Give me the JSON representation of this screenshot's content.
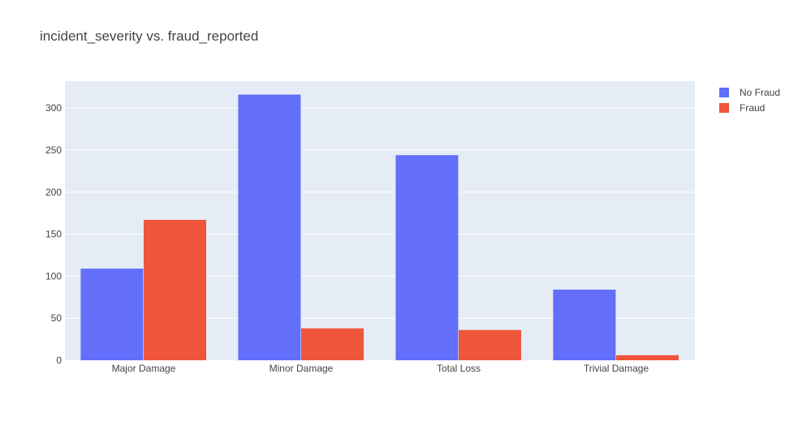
{
  "chart_data": {
    "type": "bar",
    "title": "incident_severity vs. fraud_reported",
    "xlabel": "",
    "ylabel": "",
    "categories": [
      "Major Damage",
      "Minor Damage",
      "Total Loss",
      "Trivial Damage"
    ],
    "series": [
      {
        "name": "No Fraud",
        "color": "#636efa",
        "values": [
          109,
          316,
          244,
          84
        ]
      },
      {
        "name": "Fraud",
        "color": "#ef553b",
        "values": [
          167,
          38,
          36,
          6
        ]
      }
    ],
    "ylim": [
      0,
      332
    ],
    "yticks": [
      0,
      50,
      100,
      150,
      200,
      250,
      300
    ],
    "grid": true,
    "legend_position": "top-right",
    "plot_background": "#e5ecf6"
  }
}
